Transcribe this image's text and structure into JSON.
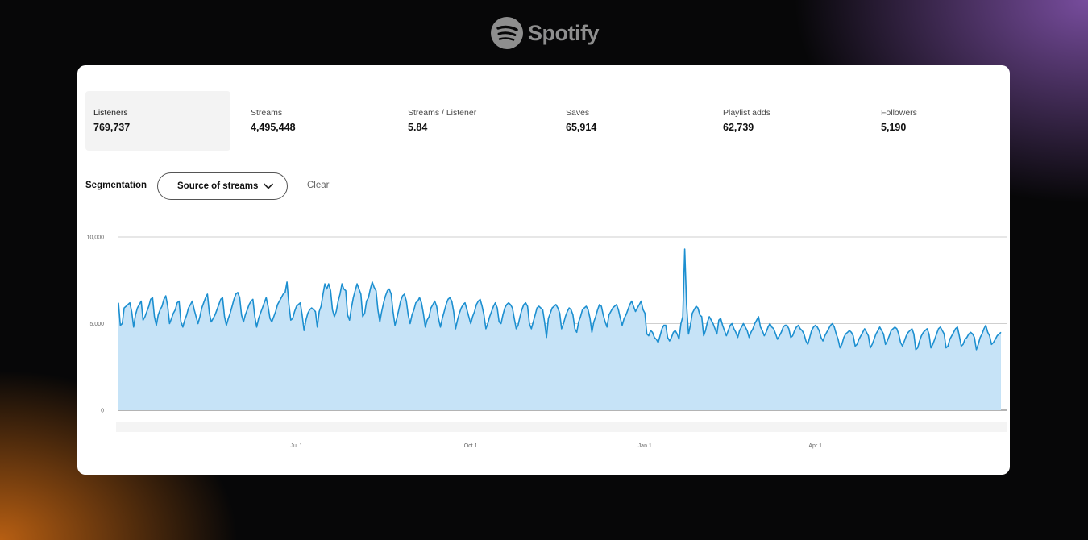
{
  "brand": {
    "name": "Spotify",
    "icon": "spotify-logo-icon",
    "color": "#8e8e8e"
  },
  "metrics": [
    {
      "label": "Listeners",
      "value": "769,737",
      "active": true
    },
    {
      "label": "Streams",
      "value": "4,495,448",
      "active": false
    },
    {
      "label": "Streams / Listener",
      "value": "5.84",
      "active": false
    },
    {
      "label": "Saves",
      "value": "65,914",
      "active": false
    },
    {
      "label": "Playlist adds",
      "value": "62,739",
      "active": false
    },
    {
      "label": "Followers",
      "value": "5,190",
      "active": false
    }
  ],
  "segmentation": {
    "label": "Segmentation",
    "dropdown_value": "Source of streams",
    "dropdown_icon": "chevron-down-icon",
    "clear_label": "Clear"
  },
  "chart_data": {
    "type": "area",
    "title": "",
    "xlabel": "",
    "ylabel": "",
    "ylim": [
      0,
      10000
    ],
    "y_ticks": [
      {
        "value": 0,
        "label": "0"
      },
      {
        "value": 5000,
        "label": "5,000"
      },
      {
        "value": 10000,
        "label": "10,000"
      }
    ],
    "x_ticks": [
      {
        "label": "Jul 1",
        "day": 94
      },
      {
        "label": "Oct 1",
        "day": 186
      },
      {
        "label": "Jan 1",
        "day": 278
      },
      {
        "label": "Apr 1",
        "day": 368
      }
    ],
    "grid": true,
    "legend": "none",
    "colors": {
      "line": "#1c8fd0",
      "fill": "#c6e3f7",
      "grid": "#cfcfcf",
      "axis": "#888888"
    },
    "series": [
      {
        "values": [
          6200,
          4900,
          5000,
          5900,
          6000,
          6100,
          6200,
          5700,
          4800,
          5500,
          5900,
          6100,
          6300,
          5200,
          5400,
          5700,
          6000,
          6400,
          6500,
          5400,
          4900,
          5500,
          5800,
          6000,
          6400,
          6600,
          6000,
          5000,
          5300,
          5600,
          5800,
          6200,
          6300,
          5100,
          4800,
          5200,
          5500,
          5900,
          6100,
          6300,
          5800,
          5400,
          5000,
          5400,
          5900,
          6200,
          6500,
          6700,
          5600,
          5100,
          5300,
          5500,
          5800,
          6100,
          6400,
          6500,
          5400,
          4900,
          5300,
          5600,
          6000,
          6400,
          6700,
          6800,
          6500,
          5500,
          5100,
          5500,
          5800,
          6100,
          6300,
          6400,
          5400,
          4800,
          5300,
          5600,
          5900,
          6200,
          6500,
          6000,
          5300,
          5100,
          5400,
          5700,
          6100,
          6300,
          6500,
          6700,
          6800,
          7400,
          6100,
          5200,
          5300,
          5700,
          6000,
          6100,
          6200,
          5500,
          4600,
          5200,
          5600,
          5800,
          5900,
          5800,
          5700,
          4800,
          5700,
          6000,
          6700,
          7300,
          7000,
          7300,
          6900,
          5800,
          5400,
          5700,
          6300,
          6700,
          7300,
          7000,
          6900,
          5500,
          5200,
          5900,
          6500,
          6900,
          7300,
          7000,
          6700,
          5400,
          5600,
          6300,
          6500,
          7000,
          7400,
          7100,
          6900,
          5800,
          5100,
          5700,
          6200,
          6600,
          6900,
          7000,
          6700,
          5700,
          4900,
          5300,
          5800,
          6300,
          6600,
          6700,
          6300,
          5500,
          5000,
          5500,
          5800,
          6200,
          6300,
          6500,
          6200,
          5600,
          4800,
          5200,
          5400,
          5900,
          6100,
          6300,
          6000,
          5300,
          4800,
          5300,
          5700,
          6100,
          6400,
          6500,
          6300,
          5700,
          4700,
          5200,
          5600,
          5900,
          6100,
          6200,
          5800,
          5400,
          5000,
          5400,
          5700,
          6100,
          6300,
          6400,
          6000,
          5500,
          4700,
          5000,
          5400,
          5700,
          6000,
          6200,
          5900,
          5100,
          5000,
          5500,
          5900,
          6100,
          6200,
          6100,
          5900,
          5300,
          4700,
          4900,
          5400,
          5800,
          6100,
          6200,
          6000,
          5000,
          4700,
          5100,
          5500,
          5900,
          6000,
          5900,
          5800,
          5100,
          4200,
          5300,
          5600,
          5900,
          6000,
          6100,
          5900,
          5600,
          4700,
          5000,
          5400,
          5700,
          5900,
          5800,
          5500,
          4700,
          4500,
          5100,
          5400,
          5800,
          5900,
          6000,
          5800,
          5300,
          4500,
          5100,
          5400,
          5800,
          6100,
          6000,
          5500,
          5100,
          4800,
          5500,
          5700,
          5900,
          6000,
          6100,
          5800,
          5300,
          4900,
          5300,
          5500,
          5800,
          6100,
          6300,
          6000,
          5700,
          5900,
          6100,
          6300,
          5800,
          5600,
          4400,
          4300,
          4600,
          4500,
          4200,
          4100,
          3900,
          4300,
          4700,
          4900,
          4900,
          4200,
          4000,
          4200,
          4500,
          4600,
          4400,
          4100,
          5000,
          5400,
          9300,
          6100,
          4400,
          4900,
          5600,
          5800,
          6000,
          5900,
          5500,
          5400,
          4300,
          4600,
          5100,
          5400,
          5200,
          5000,
          4700,
          4400,
          5200,
          5300,
          4900,
          4600,
          4300,
          4600,
          4900,
          5000,
          4700,
          4500,
          4200,
          4600,
          4800,
          5000,
          4800,
          4600,
          4200,
          4500,
          4700,
          5000,
          5200,
          5400,
          4800,
          4600,
          4300,
          4500,
          4800,
          5000,
          4800,
          4700,
          4400,
          4100,
          4300,
          4500,
          4800,
          4900,
          4900,
          4700,
          4200,
          4300,
          4600,
          4800,
          4900,
          4700,
          4600,
          4400,
          4000,
          3800,
          4200,
          4600,
          4800,
          4900,
          4800,
          4600,
          4200,
          4000,
          4300,
          4500,
          4700,
          4900,
          5000,
          4800,
          4400,
          4100,
          3600,
          3800,
          4200,
          4400,
          4500,
          4600,
          4500,
          4300,
          3700,
          3800,
          4100,
          4300,
          4500,
          4700,
          4500,
          4300,
          3600,
          3800,
          4100,
          4400,
          4600,
          4800,
          4600,
          4400,
          3800,
          4000,
          4300,
          4600,
          4700,
          4800,
          4700,
          4400,
          3900,
          3700,
          4000,
          4300,
          4500,
          4600,
          4700,
          4400,
          3500,
          3600,
          4000,
          4300,
          4500,
          4600,
          4700,
          4400,
          3600,
          3800,
          4100,
          4400,
          4700,
          4800,
          4600,
          4400,
          3600,
          3700,
          4100,
          4300,
          4500,
          4700,
          4800,
          4300,
          3700,
          3800,
          4100,
          4200,
          4400,
          4500,
          4400,
          4200,
          3500,
          3800,
          4200,
          4400,
          4700,
          4900,
          4500,
          4300,
          3800,
          3900,
          4100,
          4300,
          4400,
          4500
        ]
      }
    ]
  }
}
